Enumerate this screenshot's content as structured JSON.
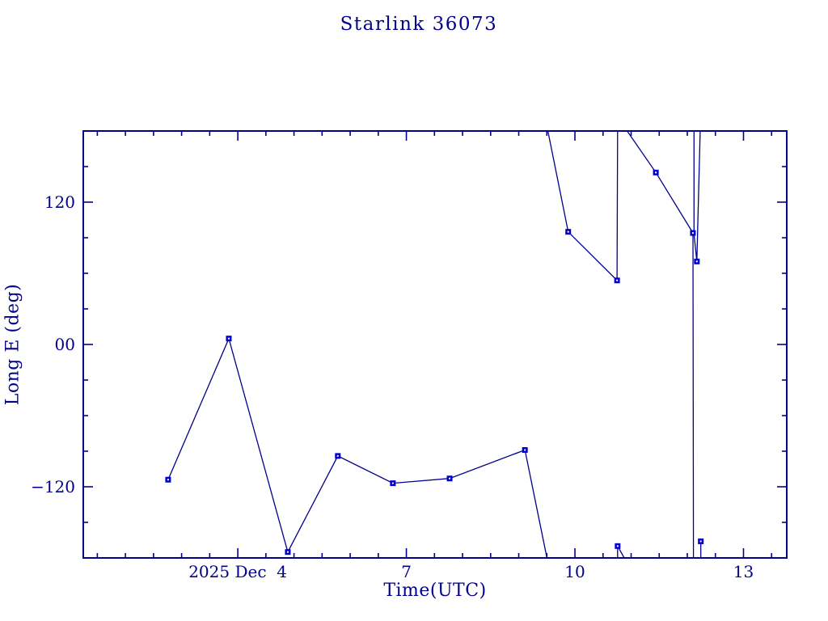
{
  "chart_data": {
    "type": "line",
    "title": "Starlink 36073",
    "xlabel": "Time(UTC)",
    "ylabel": "Long E (deg)",
    "x_axis": {
      "unit": "day of December 2025 (UTC)",
      "xlim": [
        1.25,
        13.77
      ],
      "major_ticks": [
        {
          "day": 4,
          "label": "2025 Dec  4"
        },
        {
          "day": 7,
          "label": "7"
        },
        {
          "day": 10,
          "label": "10"
        },
        {
          "day": 13,
          "label": "13"
        }
      ],
      "minor_tick_start": 1.5,
      "minor_tick_step": 0.5,
      "minor_tick_end": 13.5
    },
    "y_axis": {
      "unit": "deg",
      "ylim": [
        -180,
        180
      ],
      "major_ticks": [
        {
          "deg": 120,
          "label": "120"
        },
        {
          "deg": 0,
          "label": "00"
        },
        {
          "deg": -120,
          "label": "−120"
        }
      ],
      "minor_tick_start": -150,
      "minor_tick_step": 30,
      "minor_tick_end": 150
    },
    "series": [
      {
        "name": "Longitude East",
        "marker": "square",
        "points_day_deg": [
          [
            2.76,
            -114
          ],
          [
            3.84,
            5
          ],
          [
            4.89,
            -175
          ],
          [
            5.78,
            -94
          ],
          [
            6.76,
            -117
          ],
          [
            7.77,
            -113
          ],
          [
            9.11,
            -89
          ],
          [
            9.88,
            95
          ],
          [
            10.75,
            54
          ],
          [
            10.76,
            -170
          ],
          [
            11.44,
            145
          ],
          [
            12.1,
            94
          ],
          [
            12.17,
            70
          ],
          [
            12.24,
            -166
          ]
        ]
      }
    ],
    "wrap_segments_day_deg": [
      [
        [
          2.76,
          -114
        ],
        [
          3.84,
          5
        ],
        [
          4.89,
          -175
        ],
        [
          5.78,
          -94
        ],
        [
          6.76,
          -117
        ],
        [
          7.77,
          -113
        ],
        [
          9.11,
          -89
        ],
        [
          9.51,
          -182
        ]
      ],
      [
        [
          9.51,
          182
        ],
        [
          9.88,
          95
        ],
        [
          10.75,
          54
        ],
        [
          10.76,
          182
        ]
      ],
      [
        [
          10.76,
          -182
        ],
        [
          10.76,
          -170
        ],
        [
          10.9,
          -182
        ]
      ],
      [
        [
          10.9,
          182
        ],
        [
          11.44,
          145
        ],
        [
          12.1,
          94
        ],
        [
          12.11,
          -182
        ]
      ],
      [
        [
          12.12,
          182
        ],
        [
          12.12,
          93
        ],
        [
          12.17,
          70
        ],
        [
          12.23,
          182
        ]
      ],
      [
        [
          12.24,
          -182
        ],
        [
          12.24,
          -166
        ]
      ]
    ],
    "legend": null,
    "grid": false,
    "colors": {
      "line": "#00008B",
      "marker": "#0000CD",
      "marker_center": "#FFFFFF",
      "text": "#00008B",
      "frame": "#00008B",
      "background": "#FFFFFF"
    }
  }
}
